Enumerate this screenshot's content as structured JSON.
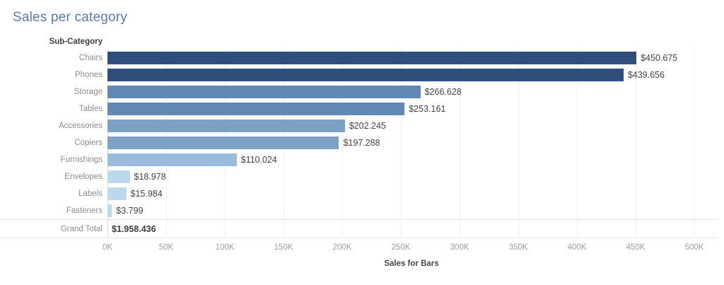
{
  "title": "Sales per category",
  "row_header": "Sub-Category",
  "grand_total": {
    "label": "Grand Total",
    "value": "$1.958.436",
    "raw": 1958436
  },
  "axis": {
    "label": "Sales for Bars",
    "ticks": [
      "0K",
      "50K",
      "100K",
      "150K",
      "200K",
      "250K",
      "300K",
      "350K",
      "400K",
      "450K",
      "500K"
    ]
  },
  "colors": {
    "title_blue": "#5779b3",
    "gridline": "#ededed",
    "zero_line": "#d8d8d8",
    "row_label_gray": "#8c8c8c",
    "value_text": "#424242"
  },
  "chart_data": {
    "type": "bar",
    "orientation": "horizontal",
    "title": "Sales per category",
    "xlabel": "Sales for Bars",
    "ylabel": "Sub-Category",
    "categories": [
      "Chairs",
      "Phones",
      "Storage",
      "Tables",
      "Accessories",
      "Copiers",
      "Furnishings",
      "Envelopes",
      "Labels",
      "Fasteners"
    ],
    "values": [
      450675,
      439656,
      266628,
      253161,
      202245,
      197288,
      110024,
      18978,
      15984,
      3799
    ],
    "value_labels": [
      "$450.675",
      "$439.656",
      "$266.628",
      "$253.161",
      "$202.245",
      "$197.288",
      "$110.024",
      "$18.978",
      "$15.984",
      "$3.799"
    ],
    "bar_colors": [
      "#2f4e7a",
      "#2f4e7a",
      "#6289b4",
      "#6289b4",
      "#7da1c5",
      "#7da1c5",
      "#99bcdc",
      "#bcd8ec",
      "#bcd8ec",
      "#bcd8ec"
    ],
    "grand_total": 1958436,
    "xlim": [
      0,
      500000
    ],
    "xticks_k": [
      0,
      50,
      100,
      150,
      200,
      250,
      300,
      350,
      400,
      450,
      500
    ],
    "grid": "vertical",
    "legend": "none"
  }
}
